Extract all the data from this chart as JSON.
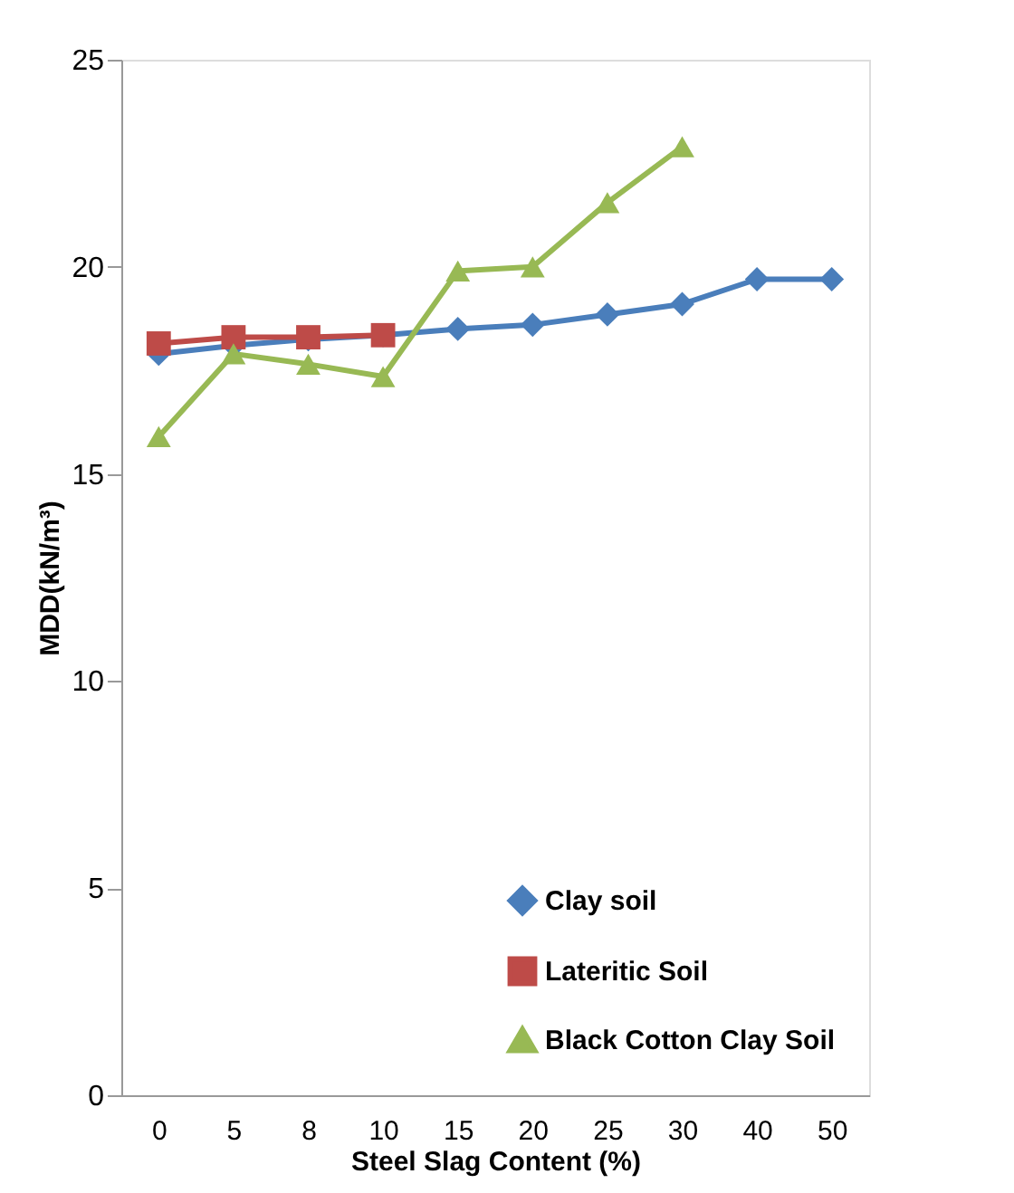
{
  "chart_data": {
    "type": "line",
    "xlabel": "Steel Slag Content (%)",
    "ylabel": "MDD(kN/m³)",
    "categories": [
      "0",
      "5",
      "8",
      "10",
      "15",
      "20",
      "25",
      "30",
      "40",
      "50"
    ],
    "series": [
      {
        "name": "Clay soil",
        "color": "#4a7ebb",
        "marker": "diamond",
        "values": [
          17.9,
          18.1,
          18.25,
          18.35,
          18.5,
          18.6,
          18.85,
          19.1,
          19.7,
          19.7
        ]
      },
      {
        "name": "Lateritic Soil",
        "color": "#be4b48",
        "marker": "square",
        "values": [
          18.15,
          18.3,
          18.3,
          18.35,
          null,
          null,
          null,
          null,
          null,
          null
        ]
      },
      {
        "name": "Black Cotton Clay Soil",
        "color": "#98b954",
        "marker": "triangle",
        "values": [
          15.9,
          17.9,
          17.65,
          17.35,
          19.9,
          20.0,
          21.55,
          22.9,
          null,
          null
        ]
      }
    ],
    "ylim": [
      0,
      25
    ],
    "yticks": [
      0,
      5,
      10,
      15,
      20,
      25
    ],
    "grid": false,
    "legend": "bottom right",
    "line_style": "solid"
  }
}
